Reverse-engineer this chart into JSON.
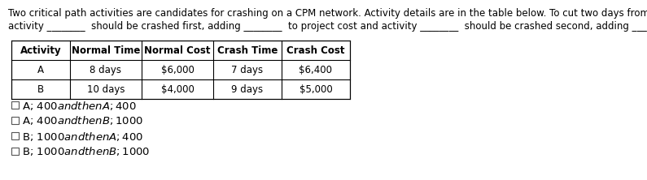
{
  "para_line1": "Two critical path activities are candidates for crashing on a CPM network. Activity details are in the table below. To cut two days from the project's duration,",
  "para_line2": "activity ________  should be crashed first, adding ________  to project cost and activity ________  should be crashed second, adding ________  to project cost .",
  "table_headers": [
    "Activity",
    "Normal Time",
    "Normal Cost",
    "Crash Time",
    "Crash Cost"
  ],
  "table_rows": [
    [
      "A",
      "8 days",
      "$6,000",
      "7 days",
      "$6,400"
    ],
    [
      "B",
      "10 days",
      "$4,000",
      "9 days",
      "$5,000"
    ]
  ],
  "radio_options": [
    "A; $400 and then A; $400",
    "A; $400 and then B; $1000",
    "B; $1000 and then A; $400",
    "B; $1000 and then B; $1000"
  ],
  "bg_color": "#ffffff",
  "text_color": "#000000",
  "font_size": 8.5,
  "header_font_size": 8.5,
  "radio_font_size": 9.5
}
